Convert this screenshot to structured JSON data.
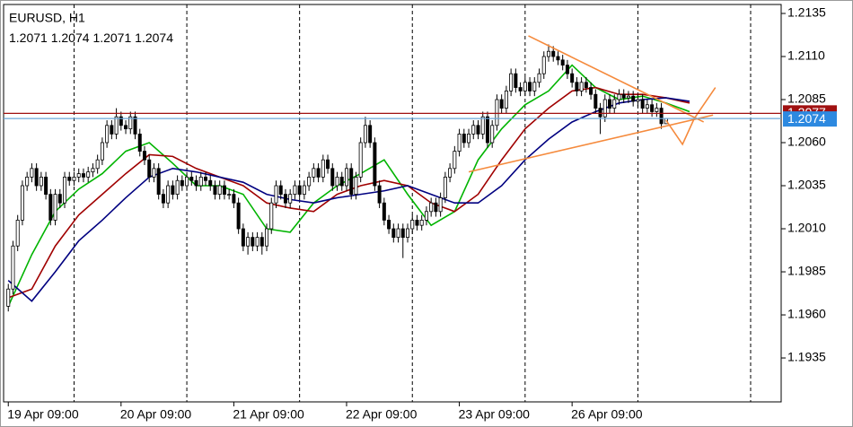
{
  "chart_data": {
    "type": "candlestick",
    "title": "EURUSD, H1",
    "x": [
      0,
      1,
      2,
      3,
      4,
      5,
      6,
      7,
      8,
      9,
      10,
      11,
      12,
      13,
      14,
      15,
      16,
      17,
      18,
      19,
      20,
      21,
      22,
      23,
      24,
      25,
      26,
      27,
      28,
      29,
      30,
      31,
      32,
      33,
      34,
      35,
      36,
      37,
      38,
      39,
      40,
      41,
      42,
      43,
      44,
      45,
      46,
      47,
      48,
      49,
      50,
      51,
      52,
      53,
      54,
      55,
      56,
      57,
      58,
      59,
      60,
      61,
      62,
      63,
      64,
      65,
      66,
      67,
      68,
      69,
      70,
      71,
      72,
      73,
      74,
      75,
      76,
      77,
      78,
      79,
      80,
      81,
      82,
      83,
      84,
      85,
      86,
      87,
      88,
      89,
      90,
      91,
      92,
      93,
      94,
      95,
      96,
      97,
      98,
      99,
      100,
      101,
      102,
      103,
      104,
      105,
      106,
      107,
      108,
      109,
      110,
      111,
      112,
      113,
      114,
      115,
      116,
      117,
      118,
      119,
      120,
      121,
      122,
      123,
      124,
      125,
      126,
      127,
      128,
      129,
      130,
      131,
      132,
      133,
      134,
      135,
      136,
      137,
      138,
      139,
      140
    ],
    "open": [
      1.1965,
      1.1975,
      1.2,
      1.2015,
      1.2035,
      1.204,
      1.2045,
      1.2035,
      1.204,
      1.203,
      1.2015,
      1.203,
      1.2025,
      1.204,
      1.2038,
      1.204,
      1.2042,
      1.204,
      1.2043,
      1.2045,
      1.205,
      1.206,
      1.207,
      1.2065,
      1.2075,
      1.207,
      1.2068,
      1.2075,
      1.2065,
      1.2055,
      1.205,
      1.204,
      1.2045,
      1.203,
      1.2025,
      1.2035,
      1.203,
      1.2038,
      1.2035,
      1.204,
      1.2038,
      1.2035,
      1.204,
      1.2038,
      1.2035,
      1.203,
      1.2035,
      1.203,
      1.203,
      1.2025,
      1.201,
      1.2,
      1.2005,
      1.2,
      1.2005,
      1.2,
      1.201,
      1.2025,
      1.2035,
      1.203,
      1.2025,
      1.203,
      1.2035,
      1.203,
      1.2035,
      1.204,
      1.2045,
      1.204,
      1.205,
      1.2045,
      1.2035,
      1.204,
      1.2035,
      1.2045,
      1.203,
      1.204,
      1.206,
      1.207,
      1.206,
      1.2035,
      1.2025,
      1.2015,
      1.201,
      1.2005,
      1.201,
      1.2005,
      1.201,
      1.2015,
      1.2012,
      1.2015,
      1.202,
      1.2025,
      1.202,
      1.2028,
      1.204,
      1.2045,
      1.2055,
      1.2065,
      1.206,
      1.2065,
      1.207,
      1.2065,
      1.2075,
      1.206,
      1.207,
      1.2085,
      1.208,
      1.209,
      1.21,
      1.2092,
      1.209,
      1.2095,
      1.209,
      1.2095,
      1.21,
      1.211,
      1.2113,
      1.211,
      1.2108,
      1.2105,
      1.21,
      1.2095,
      1.209,
      1.2095,
      1.2092,
      1.2088,
      1.208,
      1.2075,
      1.2085,
      1.208,
      1.2085,
      1.2088,
      1.2086,
      1.2087,
      1.2084,
      1.2085,
      1.208,
      1.2082,
      1.2078,
      1.208,
      1.2071
    ],
    "high": [
      1.1978,
      1.2003,
      1.2018,
      1.2038,
      1.2043,
      1.2048,
      1.2048,
      1.2043,
      1.2043,
      1.2033,
      1.2033,
      1.2033,
      1.2043,
      1.2043,
      1.2043,
      1.2045,
      1.2045,
      1.2046,
      1.2048,
      1.2053,
      1.2063,
      1.2073,
      1.2073,
      1.208,
      1.2078,
      1.2073,
      1.2078,
      1.2078,
      1.2068,
      1.2058,
      1.2053,
      1.2048,
      1.2048,
      1.2033,
      1.2038,
      1.2038,
      1.2041,
      1.2041,
      1.2043,
      1.2043,
      1.2041,
      1.2043,
      1.2043,
      1.2041,
      1.2038,
      1.2038,
      1.2038,
      1.2033,
      1.2033,
      1.2028,
      1.2013,
      1.2008,
      1.2008,
      1.2008,
      1.2008,
      1.2013,
      1.2028,
      1.2038,
      1.2038,
      1.2033,
      1.2033,
      1.2038,
      1.2038,
      1.2038,
      1.2043,
      1.2048,
      1.2048,
      1.2053,
      1.2053,
      1.2048,
      1.2043,
      1.2043,
      1.2048,
      1.2048,
      1.2043,
      1.2063,
      1.2075,
      1.2073,
      1.2063,
      1.2038,
      1.2028,
      1.2018,
      1.2013,
      1.2013,
      1.2013,
      1.2013,
      1.2018,
      1.2018,
      1.2018,
      1.2023,
      1.2028,
      1.2028,
      1.2031,
      1.2043,
      1.2048,
      1.2058,
      1.2068,
      1.2068,
      1.2068,
      1.2073,
      1.2073,
      1.2078,
      1.2078,
      1.2073,
      1.2088,
      1.2088,
      1.2093,
      1.2103,
      1.2103,
      1.2095,
      1.2098,
      1.2098,
      1.2098,
      1.2103,
      1.2113,
      1.2117,
      1.2116,
      1.2113,
      1.2111,
      1.2108,
      1.2103,
      1.2098,
      1.2098,
      1.2098,
      1.2095,
      1.2091,
      1.2083,
      1.2088,
      1.2088,
      1.2088,
      1.2091,
      1.2091,
      1.209,
      1.209,
      1.2088,
      1.2088,
      1.2085,
      1.2085,
      1.2083,
      1.2083,
      1.2074
    ],
    "low": [
      1.1962,
      1.1972,
      1.1997,
      1.2012,
      1.2032,
      1.2037,
      1.2032,
      1.2032,
      1.2027,
      1.2012,
      1.2012,
      1.2022,
      1.2022,
      1.2035,
      1.2035,
      1.2037,
      1.2037,
      1.2037,
      1.204,
      1.2042,
      1.2047,
      1.2057,
      1.2062,
      1.2062,
      1.2067,
      1.2065,
      1.2065,
      1.2062,
      1.2052,
      1.2047,
      1.2037,
      1.2037,
      1.2027,
      1.2022,
      1.2022,
      1.2027,
      1.2027,
      1.2032,
      1.2032,
      1.2035,
      1.2032,
      1.2032,
      1.2035,
      1.2032,
      1.2027,
      1.2027,
      1.2027,
      1.2027,
      1.2022,
      1.2007,
      1.1997,
      1.1995,
      1.1997,
      1.1997,
      1.1995,
      1.1997,
      1.2007,
      1.2022,
      1.2027,
      1.2022,
      1.2022,
      1.2027,
      1.2027,
      1.2027,
      1.2032,
      1.2037,
      1.2037,
      1.2037,
      1.2042,
      1.2032,
      1.2032,
      1.2032,
      1.2032,
      1.2027,
      1.2027,
      1.2037,
      1.2057,
      1.2057,
      1.2032,
      1.2022,
      1.2012,
      1.2007,
      1.2002,
      1.2002,
      1.1993,
      1.2002,
      1.2007,
      1.2009,
      1.2009,
      1.2012,
      1.2017,
      1.2017,
      1.2017,
      1.2025,
      1.2037,
      1.2042,
      1.2052,
      1.2057,
      1.2057,
      1.2062,
      1.2062,
      1.2062,
      1.2057,
      1.2057,
      1.2067,
      1.2077,
      1.2077,
      1.2087,
      1.2089,
      1.2087,
      1.2087,
      1.2087,
      1.2087,
      1.2092,
      1.2097,
      1.2107,
      1.2107,
      1.2105,
      1.2102,
      1.2097,
      1.2092,
      1.2087,
      1.2087,
      1.2089,
      1.2085,
      1.2077,
      1.2065,
      1.2072,
      1.2077,
      1.2077,
      1.2082,
      1.2083,
      1.2083,
      1.2081,
      1.2081,
      1.2077,
      1.2077,
      1.2075,
      1.2075,
      1.2068,
      1.2071
    ],
    "close": [
      1.1975,
      1.2,
      1.2015,
      1.2035,
      1.204,
      1.2045,
      1.2035,
      1.204,
      1.203,
      1.2015,
      1.203,
      1.2025,
      1.204,
      1.2038,
      1.204,
      1.2042,
      1.204,
      1.2043,
      1.2045,
      1.205,
      1.206,
      1.207,
      1.2065,
      1.2075,
      1.207,
      1.2068,
      1.2075,
      1.2065,
      1.2055,
      1.205,
      1.204,
      1.2045,
      1.203,
      1.2025,
      1.2035,
      1.203,
      1.2038,
      1.2035,
      1.204,
      1.2038,
      1.2035,
      1.204,
      1.2038,
      1.2035,
      1.203,
      1.2035,
      1.203,
      1.203,
      1.2025,
      1.201,
      1.2,
      1.2005,
      1.2,
      1.2005,
      1.2,
      1.201,
      1.2025,
      1.2035,
      1.203,
      1.2025,
      1.203,
      1.2035,
      1.203,
      1.2035,
      1.204,
      1.2045,
      1.204,
      1.205,
      1.2045,
      1.2035,
      1.204,
      1.2035,
      1.2045,
      1.203,
      1.204,
      1.206,
      1.207,
      1.206,
      1.2035,
      1.2025,
      1.2015,
      1.201,
      1.2005,
      1.201,
      1.2005,
      1.201,
      1.2015,
      1.2012,
      1.2015,
      1.202,
      1.2025,
      1.202,
      1.2028,
      1.204,
      1.2045,
      1.2055,
      1.2065,
      1.206,
      1.2065,
      1.207,
      1.2065,
      1.2075,
      1.206,
      1.207,
      1.2085,
      1.208,
      1.209,
      1.21,
      1.2092,
      1.209,
      1.2095,
      1.209,
      1.2095,
      1.21,
      1.211,
      1.2113,
      1.211,
      1.2108,
      1.2105,
      1.21,
      1.2095,
      1.209,
      1.2095,
      1.2092,
      1.2088,
      1.208,
      1.2075,
      1.2085,
      1.208,
      1.2085,
      1.2088,
      1.2086,
      1.2087,
      1.2084,
      1.2085,
      1.208,
      1.2082,
      1.2078,
      1.208,
      1.2071,
      1.2074
    ],
    "up_color": "#ffffff",
    "down_color": "#000000",
    "ma_lines": [
      {
        "color": "#00b400",
        "x": [
          0,
          5,
          10,
          15,
          20,
          25,
          30,
          35,
          40,
          45,
          50,
          55,
          60,
          65,
          70,
          75,
          80,
          85,
          90,
          95,
          100,
          105,
          110,
          115,
          120,
          125,
          130,
          135,
          140,
          145
        ],
        "values": [
          1.1965,
          1.1995,
          1.202,
          1.2033,
          1.2042,
          1.2055,
          1.206,
          1.2048,
          1.2035,
          1.2035,
          1.203,
          1.201,
          1.2008,
          1.2025,
          1.2035,
          1.2042,
          1.205,
          1.203,
          1.2012,
          1.202,
          1.205,
          1.2068,
          1.2082,
          1.209,
          1.2105,
          1.2092,
          1.2085,
          1.2087,
          1.2083,
          1.2078
        ]
      },
      {
        "color": "#a00000",
        "x": [
          0,
          5,
          10,
          15,
          20,
          25,
          30,
          35,
          40,
          45,
          50,
          55,
          60,
          65,
          70,
          75,
          80,
          85,
          90,
          95,
          100,
          105,
          110,
          115,
          120,
          125,
          130,
          135,
          140,
          145
        ],
        "values": [
          1.197,
          1.1975,
          1.2,
          1.2018,
          1.203,
          1.2042,
          1.2053,
          1.2052,
          1.2045,
          1.204,
          1.2035,
          1.2025,
          1.2022,
          1.202,
          1.203,
          1.2035,
          1.2038,
          1.2035,
          1.2025,
          1.202,
          1.203,
          1.205,
          1.2068,
          1.208,
          1.209,
          1.2092,
          1.2088,
          1.2088,
          1.2086,
          1.2083
        ]
      },
      {
        "color": "#000080",
        "x": [
          0,
          5,
          10,
          15,
          20,
          25,
          30,
          35,
          40,
          45,
          50,
          55,
          60,
          65,
          70,
          75,
          80,
          85,
          90,
          95,
          100,
          105,
          110,
          115,
          120,
          125,
          130,
          135,
          140,
          145
        ],
        "values": [
          1.198,
          1.1968,
          1.1985,
          1.2003,
          1.2015,
          1.2028,
          1.204,
          1.2045,
          1.2043,
          1.204,
          1.2037,
          1.203,
          1.2027,
          1.2025,
          1.2028,
          1.203,
          1.2032,
          1.2035,
          1.203,
          1.2025,
          1.2025,
          1.2035,
          1.205,
          1.2062,
          1.2072,
          1.2078,
          1.2083,
          1.2085,
          1.2086,
          1.2084
        ]
      }
    ],
    "trendlines": [
      {
        "color": "#f58a3c",
        "x": [
          110.7,
          148
        ],
        "values": [
          1.2122,
          1.2072
        ]
      },
      {
        "color": "#f58a3c",
        "x": [
          98,
          150
        ],
        "values": [
          1.2043,
          1.2076
        ]
      },
      {
        "color": "#f58a3c",
        "x": [
          140,
          143.5,
          146,
          150.5
        ],
        "values": [
          1.2073,
          1.2059,
          1.2074,
          1.2092
        ]
      }
    ],
    "ask_line": {
      "value": 1.2077,
      "color": "#a01010"
    },
    "bid_line": {
      "value": 1.2074,
      "color": "#6aa6d8"
    },
    "separators": [
      14,
      38,
      62,
      86,
      110,
      134,
      158
    ],
    "xlim": [
      -1,
      164.5
    ],
    "xticks": [
      {
        "value": 0,
        "label": "19 Apr 09:00"
      },
      {
        "value": 24,
        "label": "20 Apr 09:00"
      },
      {
        "value": 48,
        "label": "21 Apr 09:00"
      },
      {
        "value": 72,
        "label": "22 Apr 09:00"
      },
      {
        "value": 96,
        "label": "23 Apr 09:00"
      },
      {
        "value": 120,
        "label": "26 Apr 09:00"
      }
    ],
    "ylim": [
      1.19095,
      1.21402
    ],
    "yticks": [
      1.2135,
      {
        "value": 1.211,
        "label": "1.2110"
      },
      1.2085,
      {
        "value": 1.206,
        "label": "1.2060"
      },
      1.2035,
      {
        "value": 1.201,
        "label": "1.2010"
      },
      1.1985,
      {
        "value": 1.196,
        "label": "1.1960"
      },
      1.1935
    ],
    "grid": false
  }
}
